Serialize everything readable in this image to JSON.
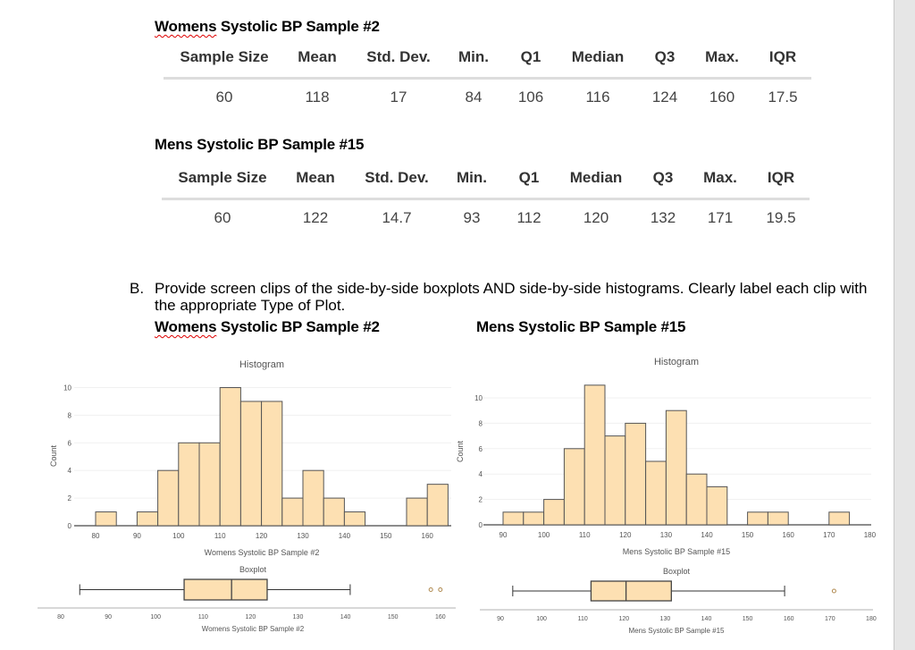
{
  "section1": {
    "title": "Womens Systolic BP Sample #2",
    "headers": [
      "Sample Size",
      "Mean",
      "Std. Dev.",
      "Min.",
      "Q1",
      "Median",
      "Q3",
      "Max.",
      "IQR"
    ],
    "values": [
      "60",
      "118",
      "17",
      "84",
      "106",
      "116",
      "124",
      "160",
      "17.5"
    ]
  },
  "section2": {
    "title": "Mens Systolic BP Sample #15",
    "headers": [
      "Sample Size",
      "Mean",
      "Std. Dev.",
      "Min.",
      "Q1",
      "Median",
      "Q3",
      "Max.",
      "IQR"
    ],
    "values": [
      "60",
      "122",
      "14.7",
      "93",
      "112",
      "120",
      "132",
      "171",
      "19.5"
    ]
  },
  "instruction": {
    "marker": "B.",
    "text": "Provide screen clips of the side-by-side boxplots AND side-by-side histograms. Clearly label each clip with the appropriate Type of Plot."
  },
  "clip_titles": {
    "left_first_word": "Womens",
    "left_rest": " Systolic BP Sample #2",
    "right": "Mens Systolic BP Sample #15"
  },
  "colors": {
    "bar_fill": "#fde0b2",
    "bar_stroke": "#555555",
    "grid": "#f0f0f0",
    "axis": "#666666"
  },
  "chart_data": [
    {
      "type": "bar",
      "title": "Histogram",
      "xlabel": "Womens Systolic BP Sample #2",
      "ylabel": "Count",
      "bin_width": 5,
      "bin_starts": [
        80,
        90,
        95,
        100,
        105,
        110,
        115,
        120,
        125,
        130,
        135,
        140,
        155,
        160
      ],
      "counts": [
        1,
        1,
        4,
        6,
        6,
        10,
        9,
        9,
        2,
        4,
        2,
        1,
        2,
        3
      ],
      "xticks": [
        80,
        90,
        100,
        110,
        120,
        130,
        140,
        150,
        160
      ],
      "yticks": [
        0,
        2,
        4,
        6,
        8,
        10
      ],
      "ylim": [
        0,
        10
      ],
      "grid": true
    },
    {
      "type": "bar",
      "title": "Histogram",
      "xlabel": "Mens Systolic BP Sample #15",
      "ylabel": "Count",
      "bin_width": 5,
      "bin_starts": [
        90,
        95,
        100,
        105,
        110,
        115,
        120,
        125,
        130,
        135,
        140,
        150,
        155,
        170
      ],
      "counts": [
        1,
        1,
        2,
        6,
        11,
        7,
        8,
        5,
        9,
        4,
        3,
        1,
        1,
        1
      ],
      "xticks": [
        90,
        100,
        110,
        120,
        130,
        140,
        150,
        160,
        170,
        180
      ],
      "yticks": [
        0,
        2,
        4,
        6,
        8,
        10
      ],
      "ylim": [
        0,
        11
      ],
      "grid": true
    },
    {
      "type": "boxplot",
      "title": "Boxplot",
      "xlabel": "Womens Systolic BP Sample #2",
      "whisker_low": 84,
      "q1": 106,
      "median": 116,
      "q3": 123.5,
      "whisker_high": 141,
      "outliers": [
        158,
        160
      ],
      "xticks": [
        80,
        90,
        100,
        110,
        120,
        130,
        140,
        150,
        160
      ]
    },
    {
      "type": "boxplot",
      "title": "Boxplot",
      "xlabel": "Mens Systolic BP Sample #15",
      "whisker_low": 93,
      "q1": 112,
      "median": 120.5,
      "q3": 131.5,
      "whisker_high": 159,
      "outliers": [
        171
      ],
      "xticks": [
        90,
        100,
        110,
        120,
        130,
        140,
        150,
        160,
        170,
        180
      ]
    }
  ]
}
